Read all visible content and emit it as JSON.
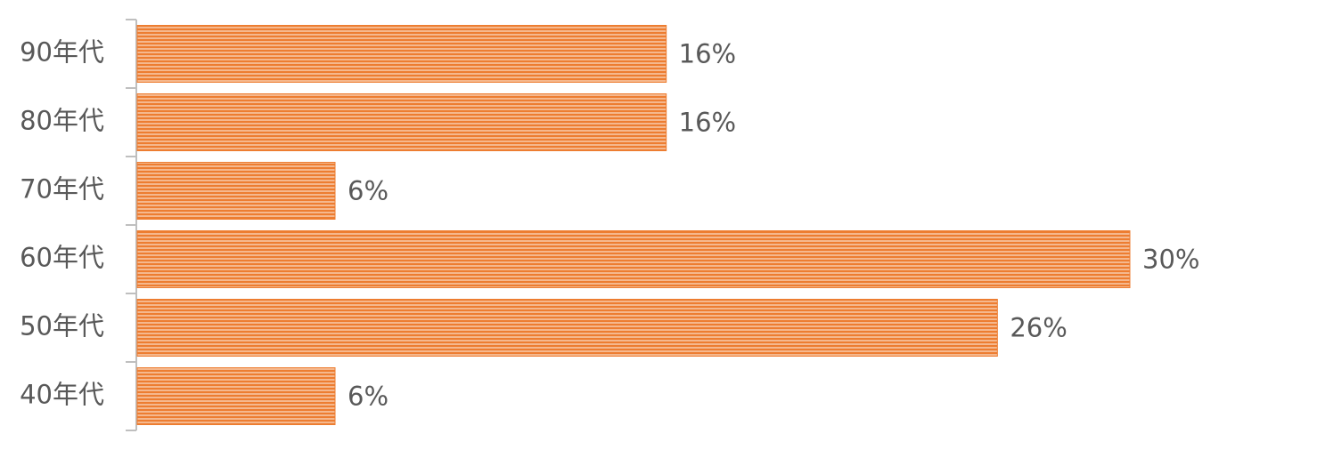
{
  "chart_data": {
    "type": "bar",
    "orientation": "horizontal",
    "categories": [
      "90年代",
      "80年代",
      "70年代",
      "60年代",
      "50年代",
      "40年代"
    ],
    "values": [
      16,
      16,
      6,
      30,
      26,
      6
    ],
    "value_labels": [
      "16%",
      "16%",
      "6%",
      "30%",
      "26%",
      "6%"
    ],
    "color": "#ed7d31"
  }
}
